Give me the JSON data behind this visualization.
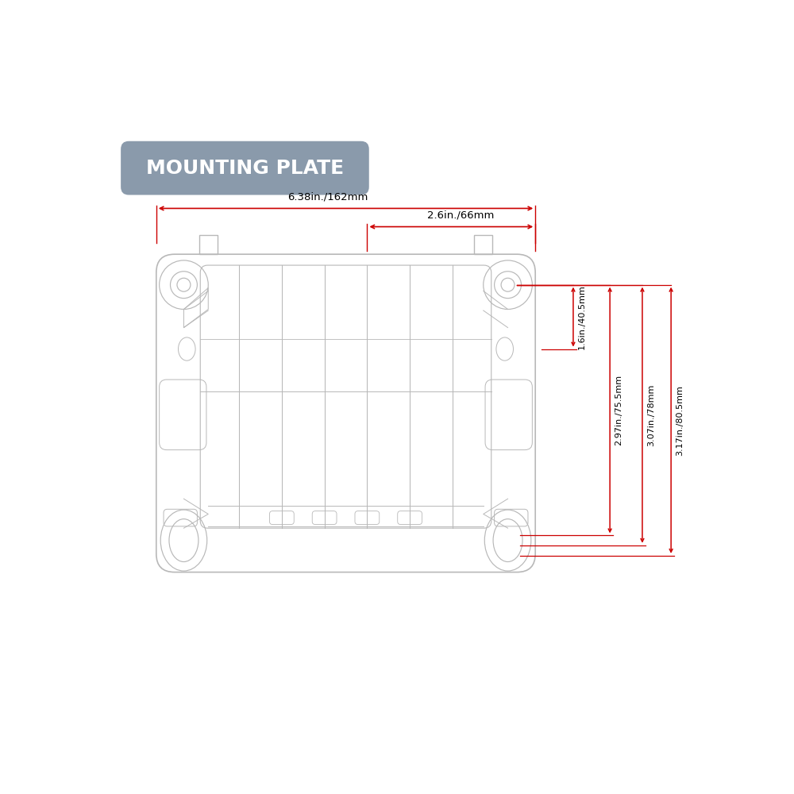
{
  "bg_color": "#ffffff",
  "line_color": "#b8b8b8",
  "dim_color": "#cc0000",
  "title": "MOUNTING PLATE",
  "title_bg": "#8a9aab",
  "title_text_color": "#ffffff",
  "dim_top_full_label": "6.38in./162mm",
  "dim_top_inner_label": "2.6in./66mm",
  "dim_right_1_label": "1.6in./40.5mm",
  "dim_right_2_label": "2.97in./75.5mm",
  "dim_right_3_label": "3.07in./78mm",
  "dim_right_4_label": "3.17in./80.5mm"
}
